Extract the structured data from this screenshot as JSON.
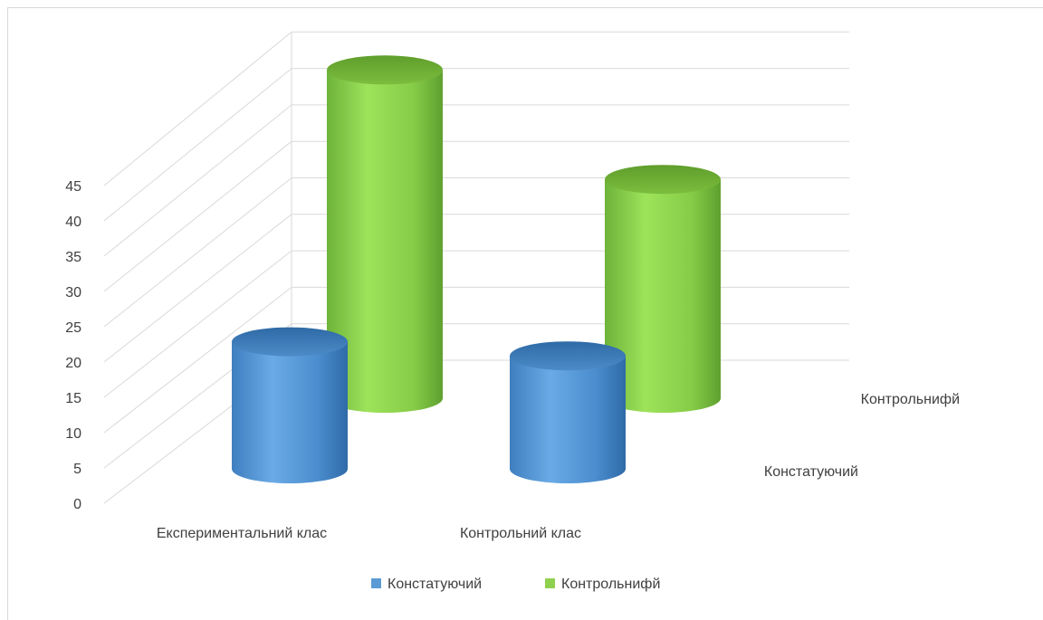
{
  "chart_data": {
    "type": "bar",
    "style": "3d-cylinder",
    "categories": [
      "Експериментальний клас",
      "Контрольний клас"
    ],
    "series": [
      {
        "name": "Констатуючий",
        "values": [
          18,
          16
        ],
        "color": "#5b9bd5"
      },
      {
        "name": "Контрольнифй",
        "values": [
          45,
          30
        ],
        "color": "#8fd14f"
      }
    ],
    "y_ticks": [
      "0",
      "5",
      "10",
      "15",
      "20",
      "25",
      "30",
      "35",
      "40",
      "45"
    ],
    "ylim": [
      0,
      45
    ],
    "legend_position": "bottom",
    "grid": true
  }
}
